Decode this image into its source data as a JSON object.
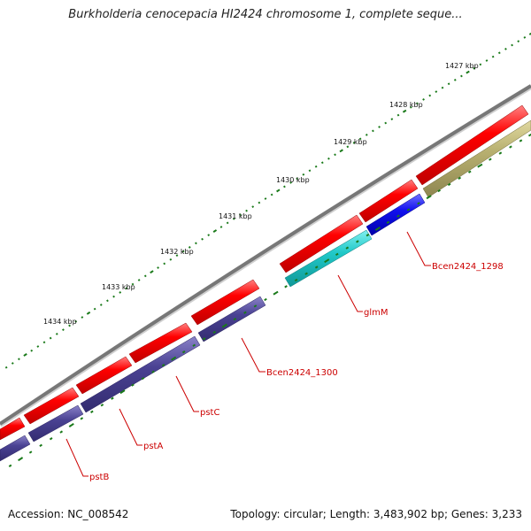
{
  "title": "Burkholderia cenocepacia HI2424 chromosome 1, complete seque...",
  "footer": {
    "accession": "Accession: NC_008542",
    "summary": "Topology: circular; Length: 3,483,902 bp; Genes: 3,233"
  },
  "colors": {
    "backbone": "#808080",
    "forward_gene": "#ff0000",
    "reverse_gene": "#4a4293",
    "glmM": "#20c8c8",
    "Bcen2424_1298": "#1010ee",
    "olive_feature": "#b8b070",
    "tick": "#1a7a1a",
    "label": "#cc0000"
  },
  "kbp_labels": [
    "1427 kbp",
    "1428 kbp",
    "1429 kbp",
    "1430 kbp",
    "1431 kbp",
    "1432 kbp",
    "1433 kbp",
    "1434 kbp"
  ],
  "gene_labels": [
    "Bcen2424_1298",
    "glmM",
    "Bcen2424_1300",
    "pstC",
    "pstA",
    "pstB"
  ]
}
